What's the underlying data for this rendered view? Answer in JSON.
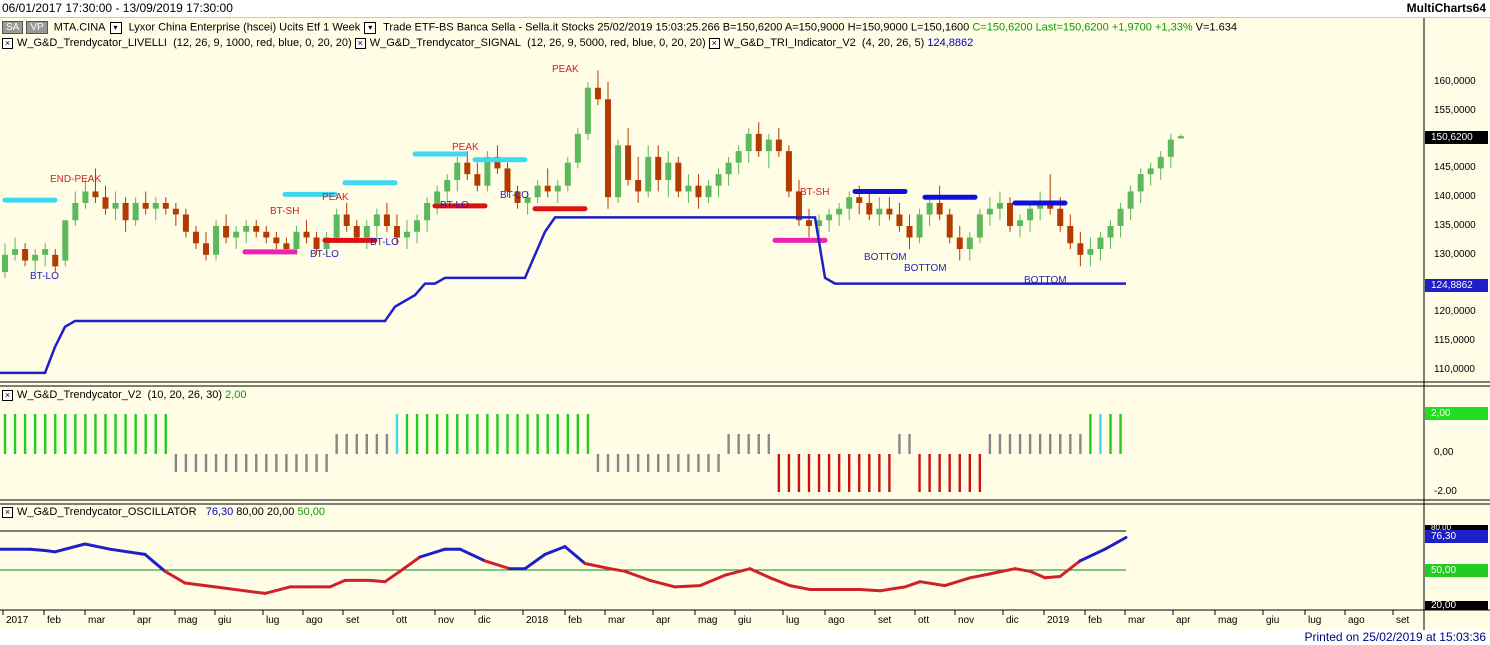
{
  "window": {
    "date_range": "06/01/2017 17:30:00 - 13/09/2019 17:30:00",
    "app_name": "MultiCharts64"
  },
  "header": {
    "chip_sa": "SA",
    "chip_vp": "VP",
    "symbol": "MTA.CINA",
    "description": "Lyxor China Enterprise (hscei) Ucits Etf",
    "interval": "1 Week",
    "session": "Trade",
    "exchange": "ETF-BS",
    "feed": "Banca Sella - Sella.it",
    "category": "Stocks",
    "datetime": "25/02/2019",
    "time": "15:03:25.266",
    "bid": "B=150,6200",
    "ask": "A=150,9000",
    "high": "H=150,9000",
    "low": "L=150,1600",
    "close": "C=150,6200",
    "last": "Last=150,6200",
    "change": "+1,9700",
    "change_pct": "+1,33%",
    "volume": "V=1.634"
  },
  "studies_main": [
    {
      "name": "W_G&D_Trendycator_LIVELLI",
      "params": "(12, 26, 9, 1000, red, blue, 0, 20, 20)"
    },
    {
      "name": "W_G&D_Trendycator_SIGNAL",
      "params": "(12, 26, 9, 5000, red, blue, 0, 20, 20)"
    },
    {
      "name": "W_G&D_TRI_Indicator_V2",
      "params": "(4, 20, 26, 5)",
      "value": "124,8862"
    }
  ],
  "pane2": {
    "name": "W_G&D_Trendycator_V2",
    "params": "(10, 20, 26, 30)",
    "value": "2,00"
  },
  "pane3": {
    "name": "W_G&D_Trendycator_OSCILLATOR",
    "value": "76,30",
    "level1": "80,00",
    "level2": "20,00",
    "level3": "50,00"
  },
  "price_axis": [
    "160,0000",
    "155,0000",
    "150,0000",
    "145,0000",
    "140,0000",
    "135,0000",
    "130,0000",
    "125,0000",
    "120,0000",
    "115,0000",
    "110,0000"
  ],
  "price_tags": {
    "last": "150,6200",
    "indicator": "124,8862"
  },
  "pane2_axis": {
    "top": "2,00",
    "mid": "0,00",
    "bottom": "-2.00"
  },
  "pane3_axis": {
    "top": "80,00",
    "mid": "50,00",
    "bottom": "20,00",
    "value": "76,30"
  },
  "time_axis": [
    "2017",
    "feb",
    "mar",
    "apr",
    "mag",
    "giu",
    "lug",
    "ago",
    "set",
    "ott",
    "nov",
    "dic",
    "2018",
    "feb",
    "mar",
    "apr",
    "mag",
    "giu",
    "lug",
    "ago",
    "set",
    "ott",
    "nov",
    "dic",
    "2019",
    "feb",
    "mar",
    "apr",
    "mag",
    "giu",
    "lug",
    "ago",
    "set"
  ],
  "annotations": [
    "END-PEAK",
    "BT-LO",
    "BT-SH",
    "PEAK",
    "BT-LO",
    "BT-LO",
    "PEAK",
    "BT-LO",
    "BT-LO",
    "PEAK",
    "BT-SH",
    "BOTTOM",
    "BOTTOM",
    "BOTTOM"
  ],
  "footer": {
    "printed": "Printed on 25/02/2019 at 15:03:36"
  },
  "colors": {
    "background": "#fffde6",
    "bull": "#5cb85c",
    "bear": "#b33a00",
    "line": "#1f1fc8",
    "osc_red": "#d0202a",
    "cyan": "#3fd8f0",
    "pink": "#f020b0",
    "green_bar": "#22cc22",
    "gray_bar": "#888888",
    "red_bar": "#cc1111"
  }
}
